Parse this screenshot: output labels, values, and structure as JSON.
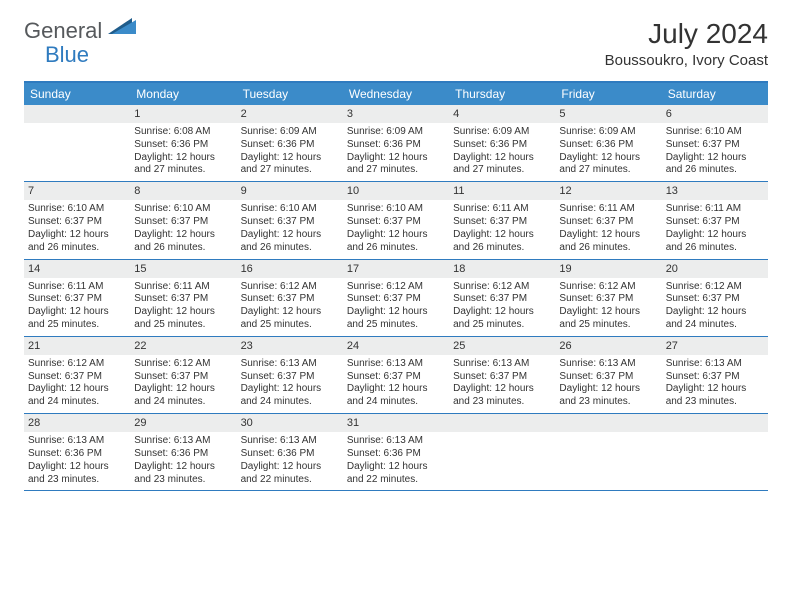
{
  "logo": {
    "text_general": "General",
    "text_blue": "Blue",
    "color_general": "#56595c",
    "color_blue": "#2f7bbf",
    "triangle_colors": [
      "#1f5c8b",
      "#3b8bc9"
    ]
  },
  "title": "July 2024",
  "subtitle": "Boussoukro, Ivory Coast",
  "accent_color": "#3b8bc9",
  "border_color": "#2f7bbf",
  "daynum_bg": "#eceded",
  "background": "#ffffff",
  "text_color": "#333333",
  "fontsize_title": 28,
  "fontsize_subtitle": 15,
  "fontsize_weekday": 12,
  "fontsize_daynum": 11,
  "fontsize_body": 10,
  "weekdays": [
    "Sunday",
    "Monday",
    "Tuesday",
    "Wednesday",
    "Thursday",
    "Friday",
    "Saturday"
  ],
  "weeks": [
    [
      {
        "n": "",
        "sunrise": "",
        "sunset": "",
        "daylight": ""
      },
      {
        "n": "1",
        "sunrise": "6:08 AM",
        "sunset": "6:36 PM",
        "daylight": "12 hours and 27 minutes."
      },
      {
        "n": "2",
        "sunrise": "6:09 AM",
        "sunset": "6:36 PM",
        "daylight": "12 hours and 27 minutes."
      },
      {
        "n": "3",
        "sunrise": "6:09 AM",
        "sunset": "6:36 PM",
        "daylight": "12 hours and 27 minutes."
      },
      {
        "n": "4",
        "sunrise": "6:09 AM",
        "sunset": "6:36 PM",
        "daylight": "12 hours and 27 minutes."
      },
      {
        "n": "5",
        "sunrise": "6:09 AM",
        "sunset": "6:36 PM",
        "daylight": "12 hours and 27 minutes."
      },
      {
        "n": "6",
        "sunrise": "6:10 AM",
        "sunset": "6:37 PM",
        "daylight": "12 hours and 26 minutes."
      }
    ],
    [
      {
        "n": "7",
        "sunrise": "6:10 AM",
        "sunset": "6:37 PM",
        "daylight": "12 hours and 26 minutes."
      },
      {
        "n": "8",
        "sunrise": "6:10 AM",
        "sunset": "6:37 PM",
        "daylight": "12 hours and 26 minutes."
      },
      {
        "n": "9",
        "sunrise": "6:10 AM",
        "sunset": "6:37 PM",
        "daylight": "12 hours and 26 minutes."
      },
      {
        "n": "10",
        "sunrise": "6:10 AM",
        "sunset": "6:37 PM",
        "daylight": "12 hours and 26 minutes."
      },
      {
        "n": "11",
        "sunrise": "6:11 AM",
        "sunset": "6:37 PM",
        "daylight": "12 hours and 26 minutes."
      },
      {
        "n": "12",
        "sunrise": "6:11 AM",
        "sunset": "6:37 PM",
        "daylight": "12 hours and 26 minutes."
      },
      {
        "n": "13",
        "sunrise": "6:11 AM",
        "sunset": "6:37 PM",
        "daylight": "12 hours and 26 minutes."
      }
    ],
    [
      {
        "n": "14",
        "sunrise": "6:11 AM",
        "sunset": "6:37 PM",
        "daylight": "12 hours and 25 minutes."
      },
      {
        "n": "15",
        "sunrise": "6:11 AM",
        "sunset": "6:37 PM",
        "daylight": "12 hours and 25 minutes."
      },
      {
        "n": "16",
        "sunrise": "6:12 AM",
        "sunset": "6:37 PM",
        "daylight": "12 hours and 25 minutes."
      },
      {
        "n": "17",
        "sunrise": "6:12 AM",
        "sunset": "6:37 PM",
        "daylight": "12 hours and 25 minutes."
      },
      {
        "n": "18",
        "sunrise": "6:12 AM",
        "sunset": "6:37 PM",
        "daylight": "12 hours and 25 minutes."
      },
      {
        "n": "19",
        "sunrise": "6:12 AM",
        "sunset": "6:37 PM",
        "daylight": "12 hours and 25 minutes."
      },
      {
        "n": "20",
        "sunrise": "6:12 AM",
        "sunset": "6:37 PM",
        "daylight": "12 hours and 24 minutes."
      }
    ],
    [
      {
        "n": "21",
        "sunrise": "6:12 AM",
        "sunset": "6:37 PM",
        "daylight": "12 hours and 24 minutes."
      },
      {
        "n": "22",
        "sunrise": "6:12 AM",
        "sunset": "6:37 PM",
        "daylight": "12 hours and 24 minutes."
      },
      {
        "n": "23",
        "sunrise": "6:13 AM",
        "sunset": "6:37 PM",
        "daylight": "12 hours and 24 minutes."
      },
      {
        "n": "24",
        "sunrise": "6:13 AM",
        "sunset": "6:37 PM",
        "daylight": "12 hours and 24 minutes."
      },
      {
        "n": "25",
        "sunrise": "6:13 AM",
        "sunset": "6:37 PM",
        "daylight": "12 hours and 23 minutes."
      },
      {
        "n": "26",
        "sunrise": "6:13 AM",
        "sunset": "6:37 PM",
        "daylight": "12 hours and 23 minutes."
      },
      {
        "n": "27",
        "sunrise": "6:13 AM",
        "sunset": "6:37 PM",
        "daylight": "12 hours and 23 minutes."
      }
    ],
    [
      {
        "n": "28",
        "sunrise": "6:13 AM",
        "sunset": "6:36 PM",
        "daylight": "12 hours and 23 minutes."
      },
      {
        "n": "29",
        "sunrise": "6:13 AM",
        "sunset": "6:36 PM",
        "daylight": "12 hours and 23 minutes."
      },
      {
        "n": "30",
        "sunrise": "6:13 AM",
        "sunset": "6:36 PM",
        "daylight": "12 hours and 22 minutes."
      },
      {
        "n": "31",
        "sunrise": "6:13 AM",
        "sunset": "6:36 PM",
        "daylight": "12 hours and 22 minutes."
      },
      {
        "n": "",
        "sunrise": "",
        "sunset": "",
        "daylight": ""
      },
      {
        "n": "",
        "sunrise": "",
        "sunset": "",
        "daylight": ""
      },
      {
        "n": "",
        "sunrise": "",
        "sunset": "",
        "daylight": ""
      }
    ]
  ],
  "labels": {
    "sunrise": "Sunrise:",
    "sunset": "Sunset:",
    "daylight": "Daylight:"
  }
}
